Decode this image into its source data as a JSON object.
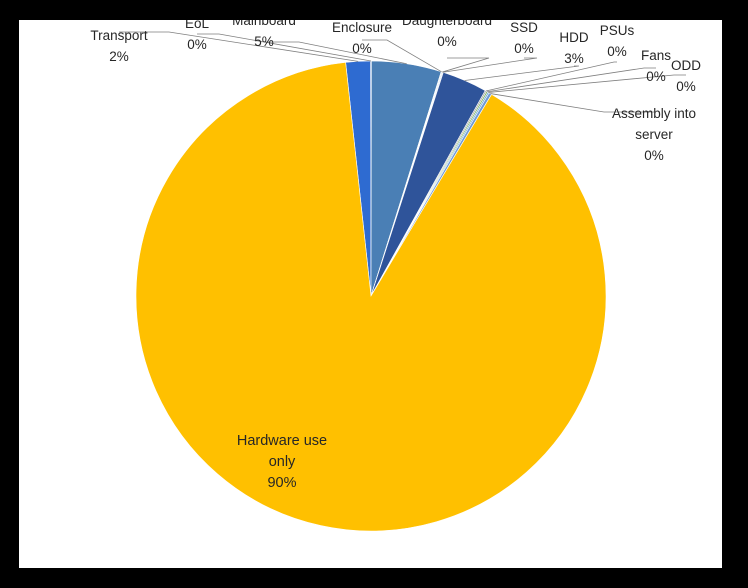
{
  "chart_data": {
    "type": "pie",
    "title": "",
    "slices": [
      {
        "name": "Transport",
        "label": "2%",
        "value": 1.7,
        "color": "#2e6bd1"
      },
      {
        "name": "EoL",
        "label": "0%",
        "value": 0.05,
        "color": "#5b9bd5"
      },
      {
        "name": "Mainboard",
        "label": "5%",
        "value": 4.8,
        "color": "#4a7fb5"
      },
      {
        "name": "Enclosure",
        "label": "0%",
        "value": 0.05,
        "color": "#a5a5a5"
      },
      {
        "name": "Daughterboard",
        "label": "0%",
        "value": 0.05,
        "color": "#5b9bd5"
      },
      {
        "name": "SSD",
        "label": "0%",
        "value": 0.05,
        "color": "#4472c4"
      },
      {
        "name": "HDD",
        "label": "3%",
        "value": 3.1,
        "color": "#2f549a"
      },
      {
        "name": "PSUs",
        "label": "0%",
        "value": 0.1,
        "color": "#a5a5a5"
      },
      {
        "name": "Fans",
        "label": "0%",
        "value": 0.1,
        "color": "#70ad47"
      },
      {
        "name": "ODD",
        "label": "0%",
        "value": 0.1,
        "color": "#5b9bd5"
      },
      {
        "name": "Assembly into server",
        "label": "0%",
        "value": 0.2,
        "color": "#6f9bd6"
      },
      {
        "name": "Hardware use only",
        "label": "90%",
        "value": 89.7,
        "color": "#ffc000"
      }
    ]
  }
}
